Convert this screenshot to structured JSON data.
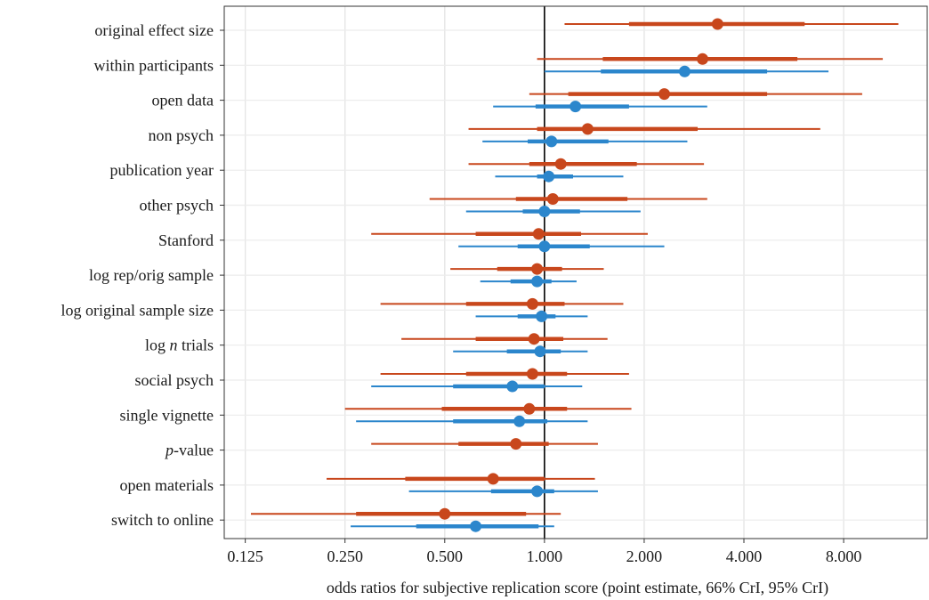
{
  "chart_data": {
    "type": "forest",
    "xlabel": "odds ratios for subjective replication score (point estimate, 66% CrI, 95% CrI)",
    "x_scale": "log2",
    "xlim": [
      0.108,
      14.3
    ],
    "x_ticks": [
      {
        "value": 0.125,
        "label": "0.125"
      },
      {
        "value": 0.25,
        "label": "0.250"
      },
      {
        "value": 0.5,
        "label": "0.500"
      },
      {
        "value": 1,
        "label": "1.000"
      },
      {
        "value": 2,
        "label": "2.000"
      },
      {
        "value": 4,
        "label": "4.000"
      },
      {
        "value": 8,
        "label": "8.000"
      }
    ],
    "reference_line": 1,
    "grid": true,
    "legend": "none",
    "colors": {
      "orange": "#c8471c",
      "blue": "#2b86cc"
    },
    "predictors": [
      {
        "label": "original effect size",
        "italic": "",
        "rest": "",
        "orange": {
          "est": 3.33,
          "ci66": [
            1.8,
            6.1
          ],
          "ci95": [
            1.15,
            11.7
          ]
        },
        "blue": null
      },
      {
        "label": "within participants",
        "italic": "",
        "rest": "",
        "orange": {
          "est": 3.0,
          "ci66": [
            1.5,
            5.8
          ],
          "ci95": [
            0.95,
            10.5
          ]
        },
        "blue": {
          "est": 2.65,
          "ci66": [
            1.48,
            4.7
          ],
          "ci95": [
            1.0,
            7.2
          ]
        }
      },
      {
        "label": "open data",
        "italic": "",
        "rest": "",
        "orange": {
          "est": 2.3,
          "ci66": [
            1.18,
            4.7
          ],
          "ci95": [
            0.9,
            9.1
          ]
        },
        "blue": {
          "est": 1.24,
          "ci66": [
            0.94,
            1.8
          ],
          "ci95": [
            0.7,
            3.1
          ]
        }
      },
      {
        "label": "non psych",
        "italic": "",
        "rest": "",
        "orange": {
          "est": 1.35,
          "ci66": [
            0.95,
            2.9
          ],
          "ci95": [
            0.59,
            6.8
          ]
        },
        "blue": {
          "est": 1.05,
          "ci66": [
            0.89,
            1.56
          ],
          "ci95": [
            0.65,
            2.7
          ]
        }
      },
      {
        "label": "publication year",
        "italic": "",
        "rest": "",
        "orange": {
          "est": 1.12,
          "ci66": [
            0.9,
            1.9
          ],
          "ci95": [
            0.59,
            3.03
          ]
        },
        "blue": {
          "est": 1.03,
          "ci66": [
            0.95,
            1.22
          ],
          "ci95": [
            0.71,
            1.73
          ]
        }
      },
      {
        "label": "other psych",
        "italic": "",
        "rest": "",
        "orange": {
          "est": 1.06,
          "ci66": [
            0.82,
            1.78
          ],
          "ci95": [
            0.45,
            3.1
          ]
        },
        "blue": {
          "est": 1.0,
          "ci66": [
            0.86,
            1.28
          ],
          "ci95": [
            0.58,
            1.95
          ]
        }
      },
      {
        "label": "Stanford",
        "italic": "",
        "rest": "",
        "orange": {
          "est": 0.96,
          "ci66": [
            0.62,
            1.29
          ],
          "ci95": [
            0.3,
            2.05
          ]
        },
        "blue": {
          "est": 1.0,
          "ci66": [
            0.83,
            1.37
          ],
          "ci95": [
            0.55,
            2.3
          ]
        }
      },
      {
        "label": "log rep/orig sample",
        "italic": "",
        "rest": "",
        "orange": {
          "est": 0.95,
          "ci66": [
            0.72,
            1.13
          ],
          "ci95": [
            0.52,
            1.51
          ]
        },
        "blue": {
          "est": 0.95,
          "ci66": [
            0.79,
            1.05
          ],
          "ci95": [
            0.64,
            1.25
          ]
        }
      },
      {
        "label": "log original sample size",
        "italic": "",
        "rest": "",
        "orange": {
          "est": 0.92,
          "ci66": [
            0.58,
            1.15
          ],
          "ci95": [
            0.32,
            1.73
          ]
        },
        "blue": {
          "est": 0.98,
          "ci66": [
            0.83,
            1.08
          ],
          "ci95": [
            0.62,
            1.35
          ]
        }
      },
      {
        "label": "log ",
        "italic": "n",
        "rest": " trials",
        "orange": {
          "est": 0.93,
          "ci66": [
            0.62,
            1.14
          ],
          "ci95": [
            0.37,
            1.55
          ]
        },
        "blue": {
          "est": 0.97,
          "ci66": [
            0.77,
            1.12
          ],
          "ci95": [
            0.53,
            1.35
          ]
        }
      },
      {
        "label": "social psych",
        "italic": "",
        "rest": "",
        "orange": {
          "est": 0.92,
          "ci66": [
            0.58,
            1.17
          ],
          "ci95": [
            0.32,
            1.8
          ]
        },
        "blue": {
          "est": 0.8,
          "ci66": [
            0.53,
            1.0
          ],
          "ci95": [
            0.3,
            1.3
          ]
        }
      },
      {
        "label": "single vignette",
        "italic": "",
        "rest": "",
        "orange": {
          "est": 0.9,
          "ci66": [
            0.49,
            1.17
          ],
          "ci95": [
            0.25,
            1.83
          ]
        },
        "blue": {
          "est": 0.84,
          "ci66": [
            0.53,
            1.02
          ],
          "ci95": [
            0.27,
            1.35
          ]
        }
      },
      {
        "label": "",
        "italic": "p",
        "rest": "-value",
        "orange": {
          "est": 0.82,
          "ci66": [
            0.55,
            1.03
          ],
          "ci95": [
            0.3,
            1.45
          ]
        },
        "blue": null
      },
      {
        "label": "open materials",
        "italic": "",
        "rest": "",
        "orange": {
          "est": 0.7,
          "ci66": [
            0.38,
            1.0
          ],
          "ci95": [
            0.22,
            1.42
          ]
        },
        "blue": {
          "est": 0.95,
          "ci66": [
            0.69,
            1.07
          ],
          "ci95": [
            0.39,
            1.45
          ]
        }
      },
      {
        "label": "switch to online",
        "italic": "",
        "rest": "",
        "orange": {
          "est": 0.5,
          "ci66": [
            0.27,
            0.88
          ],
          "ci95": [
            0.13,
            1.12
          ]
        },
        "blue": {
          "est": 0.62,
          "ci66": [
            0.41,
            0.96
          ],
          "ci95": [
            0.26,
            1.07
          ]
        }
      }
    ]
  }
}
